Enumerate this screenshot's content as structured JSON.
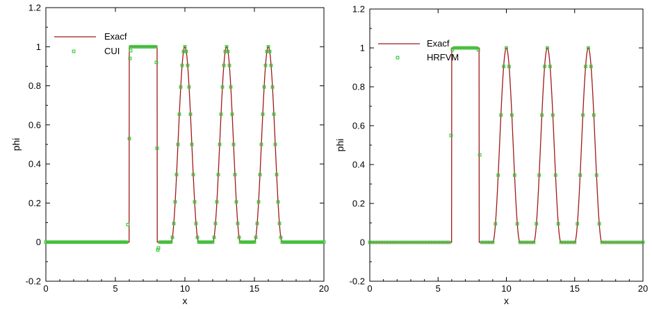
{
  "chart_data": [
    {
      "type": "line",
      "xlabel": "x",
      "ylabel": "phi",
      "xlim": [
        0,
        20
      ],
      "ylim": [
        -0.2,
        1.2
      ],
      "x_ticks": [
        "0",
        "5",
        "10",
        "15",
        "20"
      ],
      "y_ticks": [
        "-0.2",
        "0",
        "0.2",
        "0.4",
        "0.6",
        "0.8",
        "1",
        "1.2"
      ],
      "grid": false,
      "legend_position": "top-left",
      "series": [
        {
          "name": "Exacf",
          "style": "line",
          "color": "#a01818",
          "x": [
            0,
            5.99,
            6,
            8,
            8.01,
            9,
            9.5,
            10,
            10.5,
            11,
            12,
            12.5,
            13,
            13.5,
            14,
            15,
            15.5,
            16,
            16.5,
            17,
            20
          ],
          "y": [
            0,
            0,
            1,
            1,
            0,
            0,
            0.5,
            1,
            0.5,
            0,
            0,
            0.5,
            1,
            0.5,
            0,
            0,
            0.5,
            1,
            0.5,
            0,
            0
          ]
        },
        {
          "name": "CUI",
          "style": "markers",
          "color": "#3cc83c",
          "x": [
            5.9,
            6.0,
            6.05,
            6.1,
            6.1,
            7.9,
            7.95,
            8.0,
            8.05,
            8.1
          ],
          "y": [
            0.09,
            0.53,
            0.94,
            0.98,
            1.0,
            1.0,
            0.92,
            0.48,
            -0.04,
            -0.03
          ]
        }
      ]
    },
    {
      "type": "line",
      "xlabel": "x",
      "ylabel": "phi",
      "xlim": [
        0,
        20
      ],
      "ylim": [
        -0.2,
        1.2
      ],
      "x_ticks": [
        "0",
        "5",
        "10",
        "15",
        "20"
      ],
      "y_ticks": [
        "-0.2",
        "0",
        "0.2",
        "0.4",
        "0.6",
        "0.8",
        "1",
        "1.2"
      ],
      "grid": false,
      "legend_position": "top-left",
      "series": [
        {
          "name": "Exacf",
          "style": "line",
          "color": "#a01818",
          "x": [
            0,
            5.99,
            6,
            8,
            8.01,
            9,
            9.5,
            10,
            10.5,
            11,
            12,
            12.5,
            13,
            13.5,
            14,
            15,
            15.5,
            16,
            16.5,
            17,
            20
          ],
          "y": [
            0,
            0,
            1,
            1,
            0,
            0,
            0.5,
            1,
            0.5,
            0,
            0,
            0.5,
            1,
            0.5,
            0,
            0,
            0.5,
            1,
            0.5,
            0,
            0
          ]
        },
        {
          "name": "HRFVM",
          "style": "markers",
          "color": "#3cc83c",
          "x": [
            5.95,
            6.05,
            7.95,
            8.05
          ],
          "y": [
            0.55,
            0.99,
            0.99,
            0.45
          ]
        }
      ]
    }
  ]
}
